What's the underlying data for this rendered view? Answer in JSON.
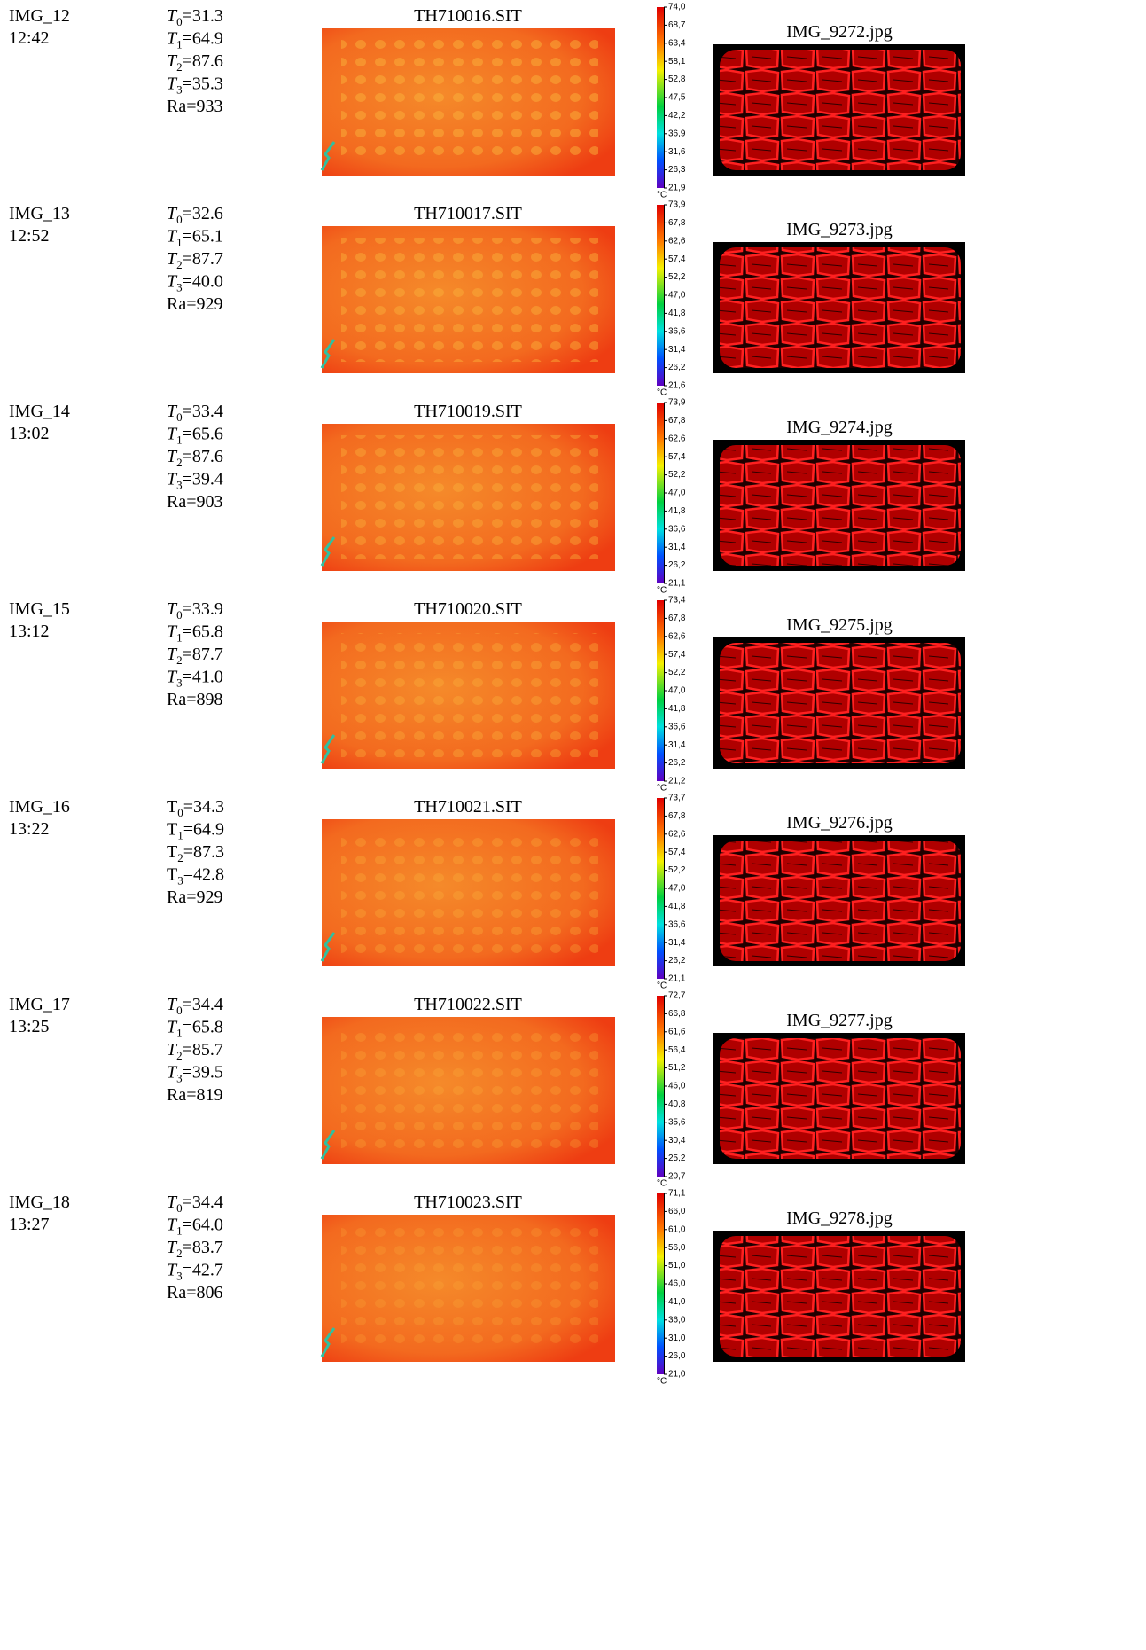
{
  "rows": [
    {
      "image": "IMG_12",
      "time": "12:42",
      "italic_symbols": true,
      "params": [
        {
          "symbol": "T",
          "index": "0",
          "value": "=31.3"
        },
        {
          "symbol": "T",
          "index": "1",
          "value": "=64.9"
        },
        {
          "symbol": "T",
          "index": "2",
          "value": "=87.6"
        },
        {
          "symbol": "T",
          "index": "3",
          "value": "=35.3"
        },
        {
          "symbol": "Ra",
          "value": "=933"
        }
      ],
      "thermal_file": "TH710016.SIT",
      "colorbar": [
        "74,0",
        "68,7",
        "63,4",
        "58,1",
        "52,8",
        "47,5",
        "42,2",
        "36,9",
        "31,6",
        "26,3",
        "21,9"
      ],
      "unit": "°C",
      "photo": "IMG_9272.jpg"
    },
    {
      "image": "IMG_13",
      "time": "12:52",
      "italic_symbols": true,
      "params": [
        {
          "symbol": "T",
          "index": "0",
          "value": "=32.6"
        },
        {
          "symbol": "T",
          "index": "1",
          "value": "=65.1"
        },
        {
          "symbol": "T",
          "index": "2",
          "value": "=87.7"
        },
        {
          "symbol": "T",
          "index": "3",
          "value": "=40.0"
        },
        {
          "symbol": "Ra",
          "value": "=929"
        }
      ],
      "thermal_file": "TH710017.SIT",
      "colorbar": [
        "73,9",
        "67,8",
        "62,6",
        "57,4",
        "52,2",
        "47,0",
        "41,8",
        "36,6",
        "31,4",
        "26,2",
        "21,6"
      ],
      "unit": "°C",
      "photo": "IMG_9273.jpg"
    },
    {
      "image": "IMG_14",
      "time": "13:02",
      "italic_symbols": true,
      "params": [
        {
          "symbol": "T",
          "index": "0",
          "value": "=33.4"
        },
        {
          "symbol": "T",
          "index": "1",
          "value": "=65.6"
        },
        {
          "symbol": "T",
          "index": "2",
          "value": "=87.6"
        },
        {
          "symbol": "T",
          "index": "3",
          "value": "=39.4"
        },
        {
          "symbol": "Ra",
          "value": "=903"
        }
      ],
      "thermal_file": "TH710019.SIT",
      "colorbar": [
        "73,9",
        "67,8",
        "62,6",
        "57,4",
        "52,2",
        "47,0",
        "41,8",
        "36,6",
        "31,4",
        "26,2",
        "21,1"
      ],
      "unit": "°C",
      "photo": "IMG_9274.jpg"
    },
    {
      "image": "IMG_15",
      "time": "13:12",
      "italic_symbols": true,
      "params": [
        {
          "symbol": "T",
          "index": "0",
          "value": "=33.9"
        },
        {
          "symbol": "T",
          "index": "1",
          "value": "=65.8"
        },
        {
          "symbol": "T",
          "index": "2",
          "value": "=87.7"
        },
        {
          "symbol": "T",
          "index": "3",
          "value": "=41.0"
        },
        {
          "symbol": "Ra",
          "value": "=898"
        }
      ],
      "thermal_file": "TH710020.SIT",
      "colorbar": [
        "73,4",
        "67,8",
        "62,6",
        "57,4",
        "52,2",
        "47,0",
        "41,8",
        "36,6",
        "31,4",
        "26,2",
        "21,2"
      ],
      "unit": "°C",
      "photo": "IMG_9275.jpg"
    },
    {
      "image": "IMG_16",
      "time": "13:22",
      "italic_symbols": false,
      "params": [
        {
          "symbol": "T",
          "index": "0",
          "value": "=34.3"
        },
        {
          "symbol": "T",
          "index": "1",
          "value": "=64.9"
        },
        {
          "symbol": "T",
          "index": "2",
          "value": "=87.3"
        },
        {
          "symbol": "T",
          "index": "3",
          "value": "=42.8"
        },
        {
          "symbol": "Ra",
          "value": "=929"
        }
      ],
      "thermal_file": "TH710021.SIT",
      "colorbar": [
        "73,7",
        "67,8",
        "62,6",
        "57,4",
        "52,2",
        "47,0",
        "41,8",
        "36,6",
        "31,4",
        "26,2",
        "21,1"
      ],
      "unit": "°C",
      "photo": "IMG_9276.jpg"
    },
    {
      "image": "IMG_17",
      "time": "13:25",
      "italic_symbols": true,
      "params": [
        {
          "symbol": "T",
          "index": "0",
          "value": "=34.4"
        },
        {
          "symbol": "T",
          "index": "1",
          "value": "=65.8"
        },
        {
          "symbol": "T",
          "index": "2",
          "value": "=85.7"
        },
        {
          "symbol": "T",
          "index": "3",
          "value": "=39.5"
        },
        {
          "symbol": "Ra",
          "value": "=819"
        }
      ],
      "thermal_file": "TH710022.SIT",
      "colorbar": [
        "72,7",
        "66,8",
        "61,6",
        "56,4",
        "51,2",
        "46,0",
        "40,8",
        "35,6",
        "30,4",
        "25,2",
        "20,7"
      ],
      "unit": "°C",
      "photo": "IMG_9277.jpg"
    },
    {
      "image": "IMG_18",
      "time": "13:27",
      "italic_symbols": true,
      "params": [
        {
          "symbol": "T",
          "index": "0",
          "value": "=34.4"
        },
        {
          "symbol": "T",
          "index": "1",
          "value": "=64.0"
        },
        {
          "symbol": "T",
          "index": "2",
          "value": "=83.7"
        },
        {
          "symbol": "T",
          "index": "3",
          "value": "=42.7"
        },
        {
          "symbol": "Ra",
          "value": "=806"
        }
      ],
      "thermal_file": "TH710023.SIT",
      "colorbar": [
        "71,1",
        "66,0",
        "61,0",
        "56,0",
        "51,0",
        "46,0",
        "41,0",
        "36,0",
        "31,0",
        "26,0",
        "21,0"
      ],
      "unit": "°C",
      "photo": "IMG_9278.jpg"
    }
  ]
}
